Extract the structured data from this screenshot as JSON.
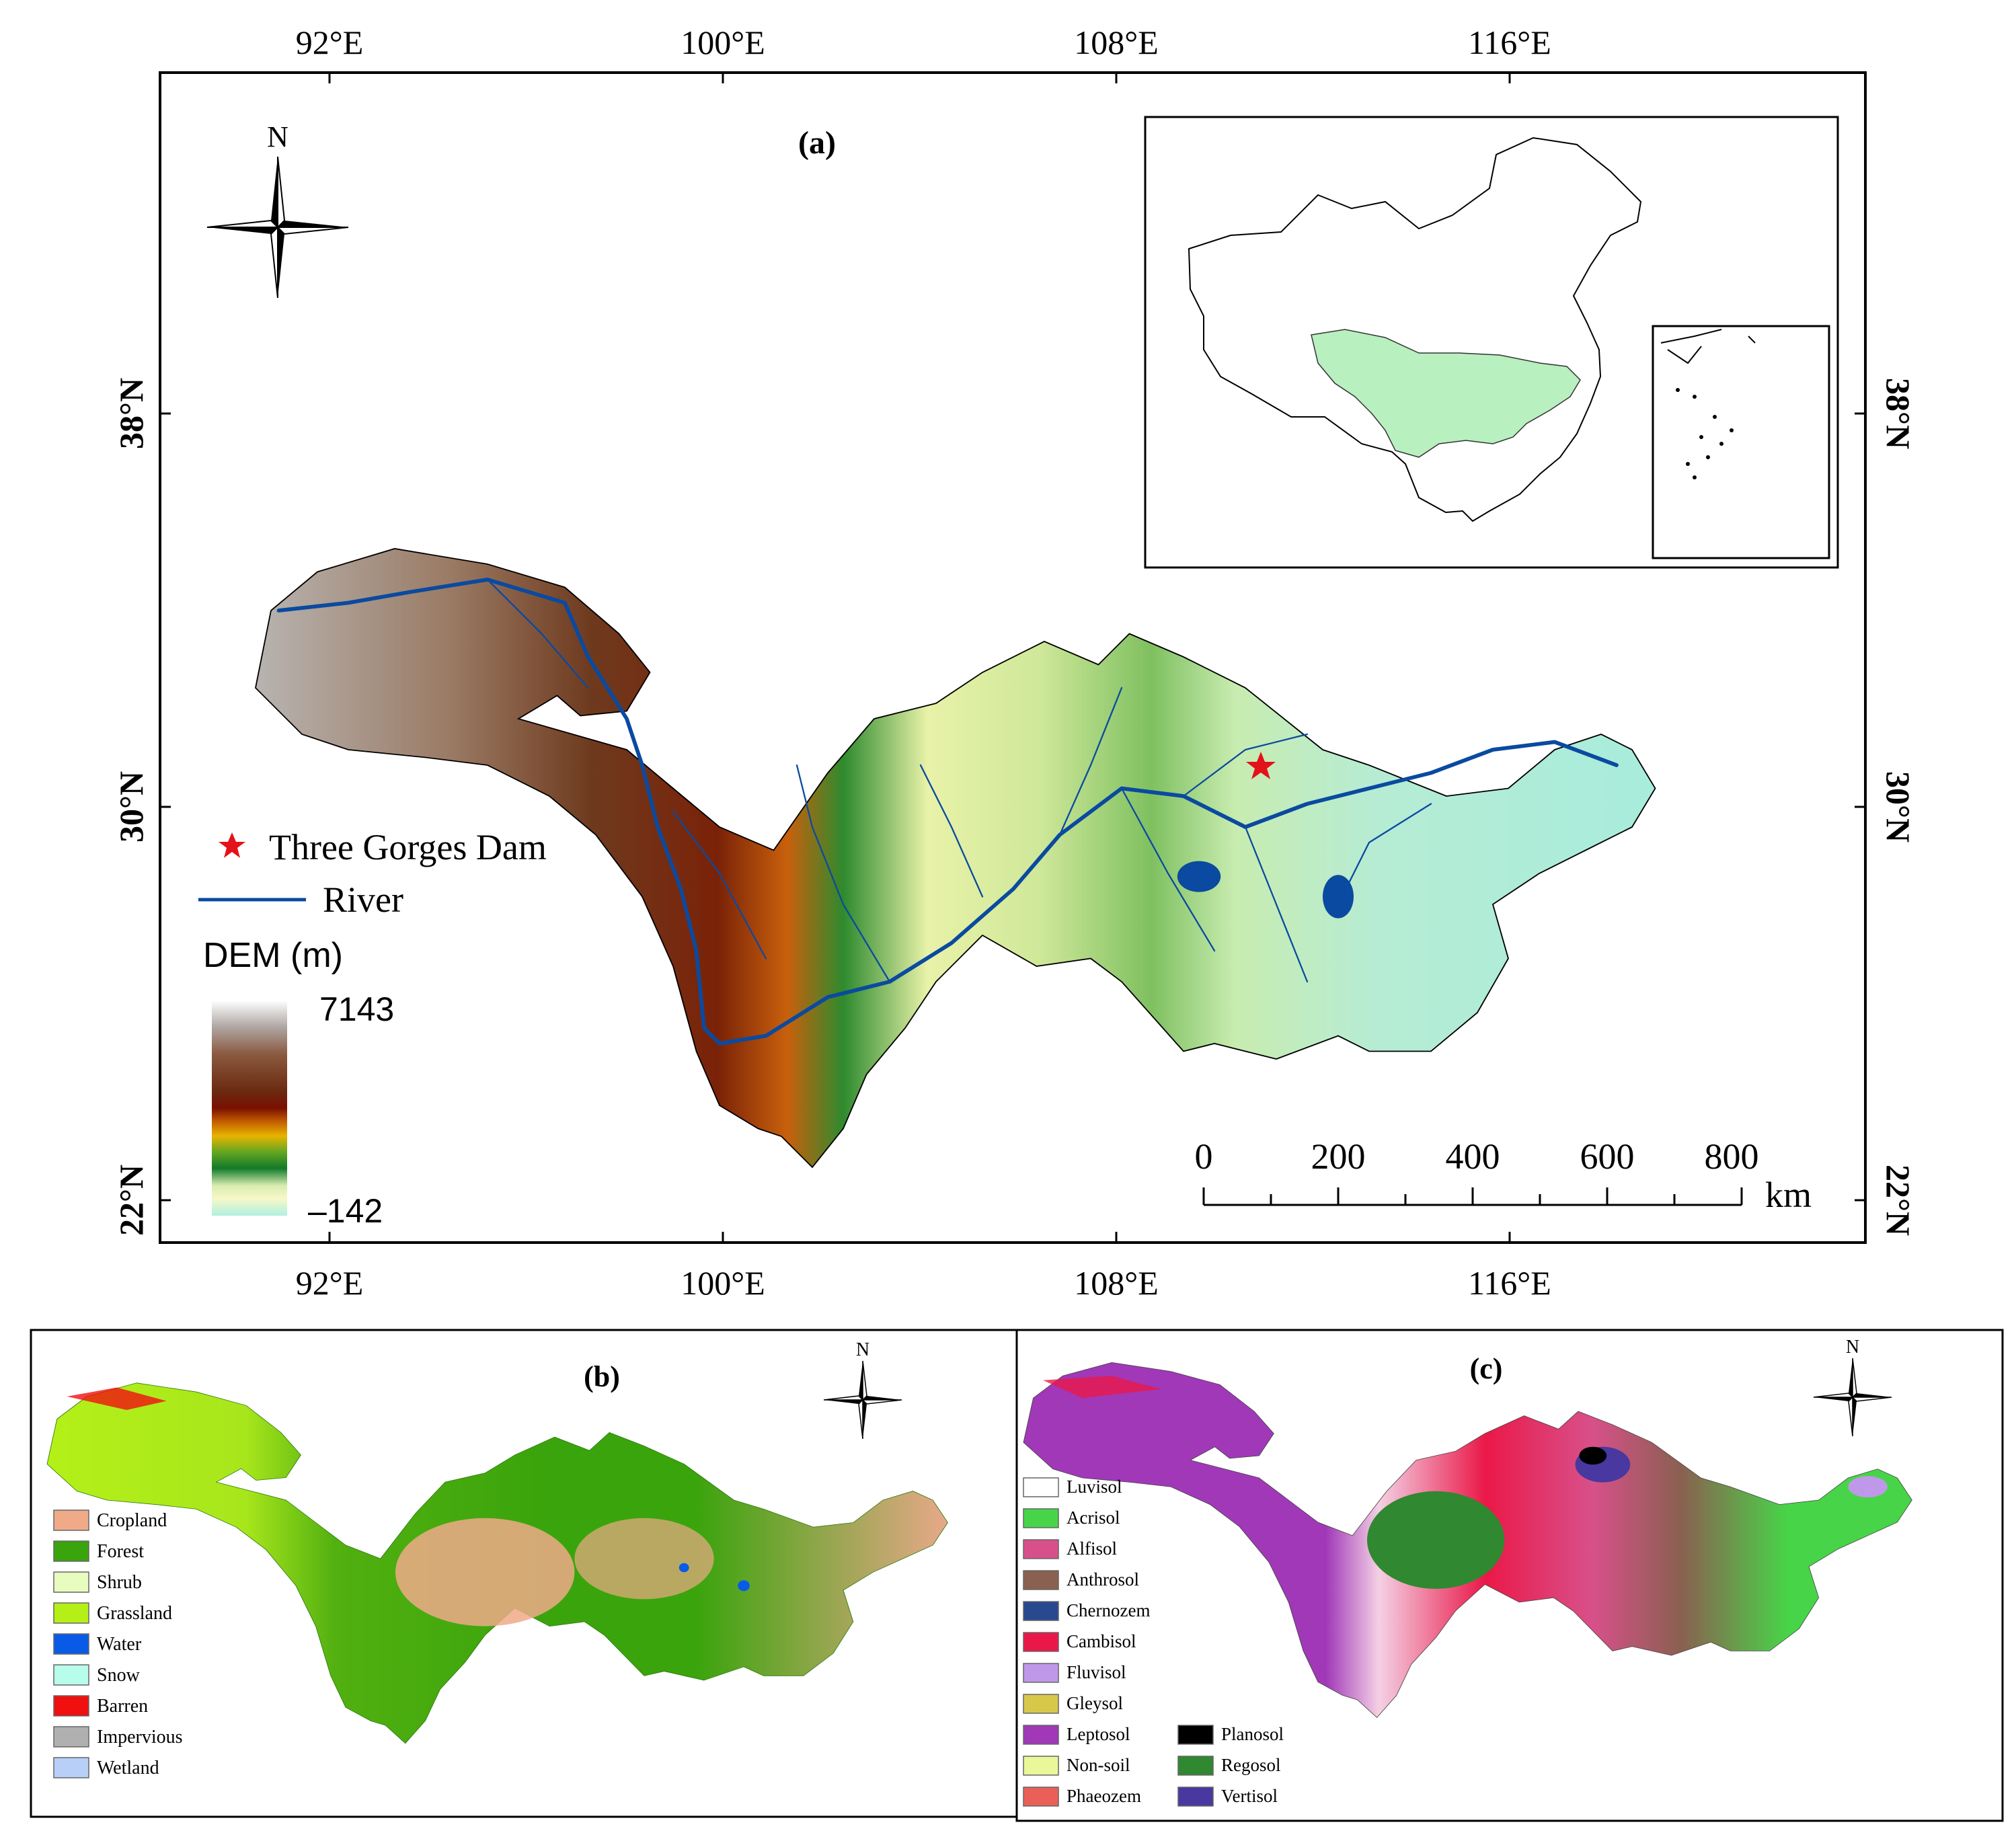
{
  "panel_a": {
    "label": "(a)",
    "north": "N",
    "lon_labels": [
      "92°E",
      "100°E",
      "108°E",
      "116°E"
    ],
    "lat_labels": [
      "38°N",
      "30°N",
      "22°N"
    ],
    "legend": {
      "dam_label": "Three Gorges Dam",
      "river_label": "River",
      "dem_title": "DEM (m)",
      "dem_max": "7143",
      "dem_min": "–142"
    },
    "scale_bar": {
      "ticks": [
        "0",
        "200",
        "400",
        "600",
        "800"
      ],
      "unit": "km"
    },
    "colors": {
      "dam": "#e3121b",
      "river": "#0a4aa0",
      "basin_inset": "#b8f0c0"
    }
  },
  "panel_b": {
    "label": "(b)",
    "north": "N",
    "legend": [
      {
        "label": "Cropland",
        "color": "#f0aa88"
      },
      {
        "label": "Forest",
        "color": "#3aa40c"
      },
      {
        "label": "Shrub",
        "color": "#e8fcc0"
      },
      {
        "label": "Grassland",
        "color": "#b4f018"
      },
      {
        "label": "Water",
        "color": "#0a5ae8"
      },
      {
        "label": "Snow",
        "color": "#b8fcec"
      },
      {
        "label": "Barren",
        "color": "#f01010"
      },
      {
        "label": "Impervious",
        "color": "#b0b0b0"
      },
      {
        "label": "Wetland",
        "color": "#b8d0f8"
      }
    ]
  },
  "panel_c": {
    "label": "(c)",
    "north": "N",
    "legend_col1": [
      {
        "label": "Luvisol",
        "color": "#ffffff"
      },
      {
        "label": "Acrisol",
        "color": "#48d448"
      },
      {
        "label": "Alfisol",
        "color": "#d8508a"
      },
      {
        "label": "Anthrosol",
        "color": "#8a6050"
      },
      {
        "label": "Chernozem",
        "color": "#284890"
      },
      {
        "label": "Cambisol",
        "color": "#ea1848"
      },
      {
        "label": "Fluvisol",
        "color": "#c098ea"
      },
      {
        "label": "Gleysol",
        "color": "#d8c84a"
      },
      {
        "label": "Leptosol",
        "color": "#a038b8"
      },
      {
        "label": "Non-soil",
        "color": "#eaf89a"
      },
      {
        "label": "Phaeozem",
        "color": "#ea6058"
      }
    ],
    "legend_col2": [
      {
        "label": "Planosol",
        "color": "#000000"
      },
      {
        "label": "Regosol",
        "color": "#308830"
      },
      {
        "label": "Vertisol",
        "color": "#4838a0"
      }
    ]
  }
}
